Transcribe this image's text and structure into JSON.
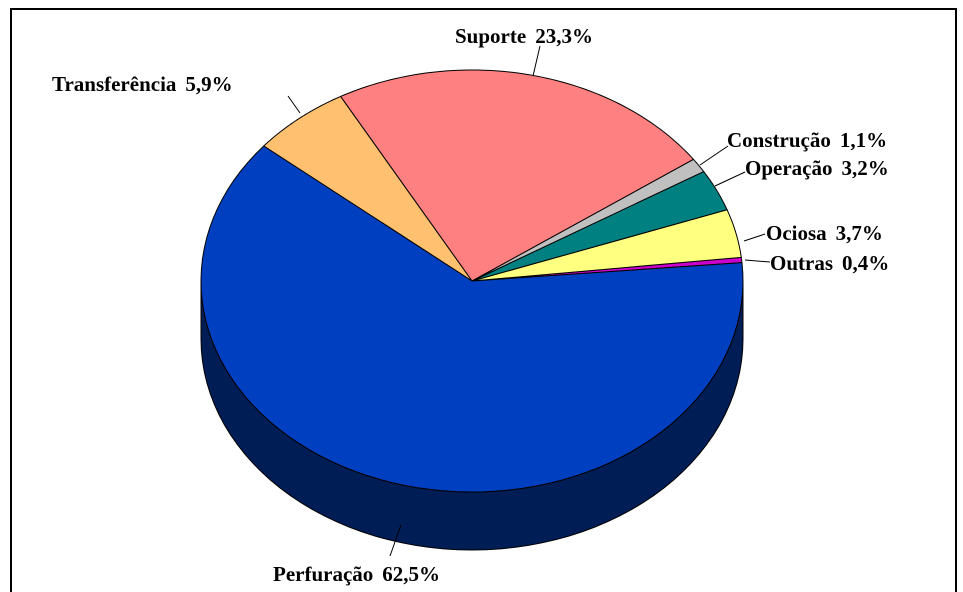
{
  "chart_data": {
    "type": "pie3d",
    "categories": [
      "Outras",
      "Ociosa",
      "Operação",
      "Construção",
      "Suporte",
      "Transferência",
      "Perfuração"
    ],
    "values": [
      0.4,
      3.7,
      3.2,
      1.1,
      23.3,
      5.9,
      62.5
    ],
    "value_labels": [
      "0,4%",
      "3,7%",
      "3,2%",
      "1,1%",
      "23,3%",
      "5,9%",
      "62,5%"
    ],
    "colors": [
      "#CC00CC",
      "#FFFF80",
      "#008080",
      "#C0C0C0",
      "#FF8080",
      "#FFC070",
      "#0040C0"
    ]
  }
}
